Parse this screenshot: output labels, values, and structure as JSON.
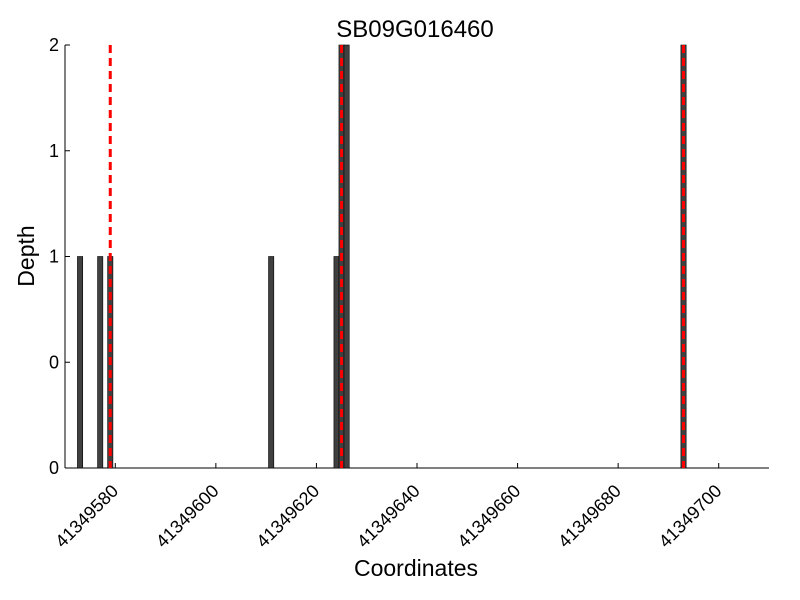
{
  "chart_data": {
    "type": "bar",
    "title": "SB09G016460",
    "xlabel": "Coordinates",
    "ylabel": "Depth",
    "xlim": [
      41349570,
      41349710
    ],
    "ylim": [
      0,
      2
    ],
    "x_ticks": [
      41349580,
      41349600,
      41349620,
      41349640,
      41349660,
      41349680,
      41349700
    ],
    "y_ticks": [
      0,
      0.5,
      1,
      1.5,
      2
    ],
    "y_tick_labels": [
      "0",
      "0",
      "1",
      "1",
      "2"
    ],
    "grid": false,
    "bar_color": "#404040",
    "bar_edge_color": "#000000",
    "series": [
      {
        "x": [
          41349573,
          41349577,
          41349579,
          41349611,
          41349624,
          41349625,
          41349626,
          41349693
        ],
        "values": [
          1,
          1,
          1,
          1,
          1,
          2,
          2,
          2
        ]
      }
    ],
    "reference_lines": {
      "color": "#ff0000",
      "style": "dashed",
      "x": [
        41349579,
        41349625,
        41349693
      ]
    }
  }
}
